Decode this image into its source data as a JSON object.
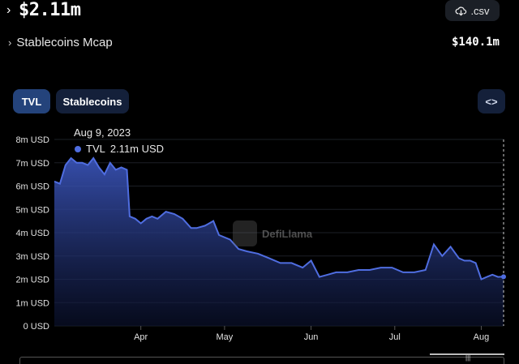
{
  "header": {
    "tvl_value": "$2.11m",
    "csv_label": ".csv"
  },
  "stablecoins": {
    "label": "Stablecoins Mcap",
    "value": "$140.1m"
  },
  "tabs": [
    {
      "label": "TVL",
      "active": true
    },
    {
      "label": "Stablecoins",
      "active": false
    }
  ],
  "embed": {
    "label": "<>"
  },
  "tooltip": {
    "date": "Aug 9, 2023",
    "series": "TVL",
    "value": "2.11m USD"
  },
  "watermark": {
    "text": "DefiLlama"
  },
  "chart_data": {
    "type": "area",
    "y_ticks": [
      "8m USD",
      "7m USD",
      "6m USD",
      "5m USD",
      "4m USD",
      "3m USD",
      "2m USD",
      "1m USD",
      "0 USD"
    ],
    "x_ticks": [
      "Apr",
      "May",
      "Jun",
      "Jul",
      "Aug"
    ],
    "ylim": [
      0,
      8
    ],
    "y_unit": "m USD",
    "series": [
      {
        "color": "#4f6de0",
        "x": [
          "2023-03-01",
          "2023-03-03",
          "2023-03-05",
          "2023-03-07",
          "2023-03-09",
          "2023-03-11",
          "2023-03-13",
          "2023-03-15",
          "2023-03-17",
          "2023-03-19",
          "2023-03-21",
          "2023-03-23",
          "2023-03-25",
          "2023-03-27",
          "2023-03-28",
          "2023-03-30",
          "2023-04-01",
          "2023-04-03",
          "2023-04-05",
          "2023-04-07",
          "2023-04-10",
          "2023-04-13",
          "2023-04-16",
          "2023-04-19",
          "2023-04-21",
          "2023-04-24",
          "2023-04-27",
          "2023-04-29",
          "2023-05-03",
          "2023-05-06",
          "2023-05-09",
          "2023-05-13",
          "2023-05-17",
          "2023-05-21",
          "2023-05-25",
          "2023-05-29",
          "2023-06-01",
          "2023-06-04",
          "2023-06-07",
          "2023-06-10",
          "2023-06-14",
          "2023-06-18",
          "2023-06-22",
          "2023-06-26",
          "2023-06-30",
          "2023-07-04",
          "2023-07-08",
          "2023-07-12",
          "2023-07-15",
          "2023-07-18",
          "2023-07-21",
          "2023-07-24",
          "2023-07-26",
          "2023-07-28",
          "2023-07-30",
          "2023-08-01",
          "2023-08-03",
          "2023-08-05",
          "2023-08-07",
          "2023-08-09"
        ],
        "y": [
          6.2,
          6.1,
          6.9,
          7.2,
          7.0,
          7.0,
          6.9,
          7.2,
          6.8,
          6.5,
          7.0,
          6.7,
          6.8,
          6.7,
          4.7,
          4.6,
          4.4,
          4.6,
          4.7,
          4.6,
          4.9,
          4.8,
          4.6,
          4.2,
          4.2,
          4.3,
          4.5,
          3.9,
          3.7,
          3.3,
          3.2,
          3.1,
          2.9,
          2.7,
          2.7,
          2.5,
          2.8,
          2.1,
          2.2,
          2.3,
          2.3,
          2.4,
          2.4,
          2.5,
          2.5,
          2.3,
          2.3,
          2.4,
          3.5,
          3.0,
          3.4,
          2.9,
          2.8,
          2.8,
          2.7,
          2.0,
          2.1,
          2.2,
          2.1,
          2.11
        ]
      }
    ]
  }
}
